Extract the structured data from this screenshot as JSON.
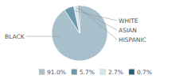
{
  "chart_data": {
    "type": "pie",
    "categories": [
      "BLACK",
      "WHITE",
      "ASIAN",
      "HISPANIC"
    ],
    "values": [
      91.0,
      5.7,
      2.7,
      0.7
    ],
    "value_labels": [
      "91.0%",
      "5.7%",
      "2.7%",
      "0.7%"
    ],
    "colors": [
      "#a8bfcc",
      "#6b98aa",
      "#d4e5ec",
      "#2d5f74"
    ],
    "legend": "bottom"
  }
}
